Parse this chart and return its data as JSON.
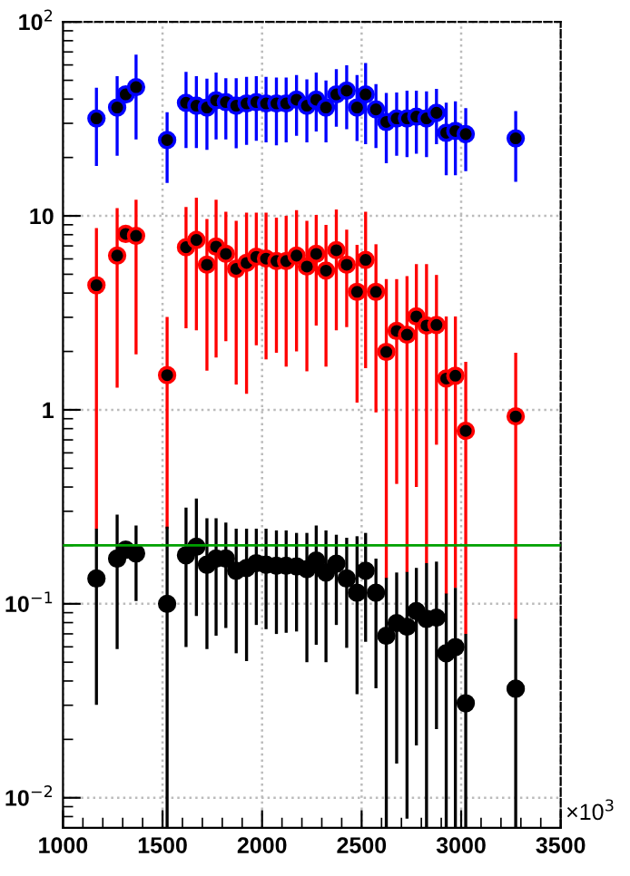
{
  "chart_data": {
    "type": "scatter",
    "x": [
      1168,
      1272,
      1315,
      1367,
      1523,
      1618,
      1670,
      1723,
      1769,
      1818,
      1870,
      1922,
      1971,
      2020,
      2072,
      2121,
      2173,
      2225,
      2272,
      2321,
      2373,
      2425,
      2477,
      2520,
      2572,
      2624,
      2676,
      2728,
      2775,
      2826,
      2876,
      2925,
      2971,
      3023,
      3274
    ],
    "series": [
      {
        "color": "#0000ff",
        "values": [
          31.8,
          36.2,
          42.3,
          46.1,
          24.6,
          38.3,
          37.0,
          36.2,
          39.4,
          38.6,
          37.0,
          38.0,
          38.6,
          38.0,
          38.0,
          38.0,
          39.7,
          37.0,
          39.7,
          36.2,
          42.3,
          44.2,
          36.2,
          42.3,
          35.4,
          30.5,
          31.8,
          31.8,
          32.5,
          31.8,
          34.0,
          26.8,
          27.4,
          26.4,
          25.1
        ],
        "errors": [
          [
            18.1,
            45.8
          ],
          [
            20.4,
            52.5
          ],
          null,
          [
            24.8,
            67.8
          ],
          [
            14.8,
            34.2
          ],
          [
            22.4,
            55.2
          ],
          [
            22.4,
            52.5
          ],
          [
            21.9,
            51.0
          ],
          [
            24.8,
            54.8
          ],
          [
            24.8,
            51.3
          ],
          [
            22.3,
            51.3
          ],
          [
            23.2,
            52.1
          ],
          [
            24.4,
            52.5
          ],
          [
            23.9,
            52.1
          ],
          [
            23.1,
            51.7
          ],
          [
            23.9,
            51.7
          ],
          [
            25.9,
            53.2
          ],
          [
            23.9,
            50.6
          ],
          [
            27.2,
            54.8
          ],
          [
            23.9,
            49.9
          ],
          [
            28.8,
            57.1
          ],
          [
            28.0,
            59.7
          ],
          [
            24.3,
            53.2
          ],
          [
            23.4,
            61.4
          ],
          [
            22.4,
            47.8
          ],
          [
            18.7,
            43.0
          ],
          [
            20.4,
            43.3
          ],
          [
            20.1,
            44.2
          ],
          [
            20.9,
            44.2
          ],
          [
            20.1,
            43.9
          ],
          [
            23.4,
            45.1
          ],
          [
            16.2,
            38.3
          ],
          [
            16.2,
            38.9
          ],
          [
            17.0,
            35.9
          ],
          [
            15.0,
            34.7
          ]
        ]
      },
      {
        "color": "#ff0000",
        "values": [
          4.39,
          6.24,
          8.07,
          7.89,
          1.51,
          6.89,
          7.51,
          5.6,
          6.94,
          6.37,
          5.33,
          5.72,
          6.15,
          6.02,
          5.85,
          5.85,
          6.24,
          5.48,
          6.37,
          5.22,
          6.65,
          5.6,
          4.06,
          5.93,
          4.06,
          1.99,
          2.55,
          2.44,
          3.03,
          2.72,
          2.74,
          1.45,
          1.5,
          0.779,
          0.925
        ],
        "errors": [
          [
            0.243,
            8.66
          ],
          [
            1.3,
            10.96
          ],
          null,
          [
            1.93,
            12.1
          ],
          [
            0.243,
            3.01
          ],
          [
            2.63,
            11.1
          ],
          [
            2.57,
            12.4
          ],
          [
            1.59,
            9.64
          ],
          [
            1.86,
            12.1
          ],
          [
            2.26,
            10.5
          ],
          [
            1.35,
            9.44
          ],
          [
            1.21,
            10.4
          ],
          [
            2.15,
            10.4
          ],
          [
            1.82,
            10.4
          ],
          [
            1.97,
            9.78
          ],
          [
            1.67,
            10.0
          ],
          [
            2.0,
            10.7
          ],
          [
            1.58,
            9.44
          ],
          [
            2.72,
            10.1
          ],
          [
            1.67,
            8.98
          ],
          [
            2.57,
            10.8
          ],
          [
            2.67,
            8.48
          ],
          [
            1.09,
            7.09
          ],
          [
            1.64,
            10.5
          ],
          [
            0.97,
            7.14
          ],
          [
            0.135,
            4.72
          ],
          [
            0.415,
            4.72
          ],
          [
            0.145,
            4.89
          ],
          [
            0.4,
            5.64
          ],
          [
            0.162,
            5.64
          ],
          [
            0.661,
            4.96
          ],
          [
            0.112,
            3.03
          ],
          [
            0.121,
            3.03
          ],
          [
            0.07,
            1.77
          ],
          [
            0.083,
            1.97
          ]
        ]
      },
      {
        "color": "#000000",
        "values": [
          0.135,
          0.171,
          0.19,
          0.182,
          0.1,
          0.178,
          0.197,
          0.159,
          0.171,
          0.171,
          0.148,
          0.153,
          0.162,
          0.159,
          0.157,
          0.157,
          0.156,
          0.151,
          0.167,
          0.145,
          0.161,
          0.135,
          0.114,
          0.148,
          0.114,
          0.0684,
          0.0795,
          0.0762,
          0.0917,
          0.0836,
          0.0848,
          0.0556,
          0.0598,
          0.0307,
          0.0365
        ],
        "errors": [
          [
            0.0301,
            0.244
          ],
          [
            0.0585,
            0.288
          ],
          null,
          [
            0.1035,
            0.253
          ],
          [
            0.007,
            0.25
          ],
          [
            0.0598,
            0.313
          ],
          [
            0.0866,
            0.349
          ],
          [
            0.0585,
            0.276
          ],
          [
            0.0684,
            0.276
          ],
          [
            0.0751,
            0.262
          ],
          [
            0.0556,
            0.244
          ],
          [
            0.0507,
            0.244
          ],
          [
            0.0778,
            0.244
          ],
          [
            0.074,
            0.244
          ],
          [
            0.0699,
            0.239
          ],
          [
            0.0709,
            0.239
          ],
          [
            0.072,
            0.232
          ],
          [
            0.05,
            0.232
          ],
          [
            0.0615,
            0.253
          ],
          [
            0.05,
            0.239
          ],
          [
            0.0778,
            0.227
          ],
          [
            0.0593,
            0.219
          ],
          [
            0.0342,
            0.223
          ],
          [
            0.0637,
            0.232
          ],
          [
            0.0367,
            0.171
          ],
          [
            0.007,
            0.136
          ],
          [
            0.015,
            0.145
          ],
          [
            0.0078,
            0.146
          ],
          [
            0.0186,
            0.153
          ],
          [
            0.007,
            0.162
          ],
          [
            0.0226,
            0.165
          ],
          [
            0.007,
            0.113
          ],
          [
            0.007,
            0.121
          ],
          [
            0.007,
            0.0699
          ],
          [
            0.007,
            0.0836
          ]
        ]
      }
    ],
    "log": "y",
    "marker": "circle",
    "grid": true,
    "xlim": [
      1000,
      3500
    ],
    "xticks": [
      1000,
      1500,
      2000,
      2500,
      3000,
      3500
    ],
    "ylim": [
      0.007,
      100
    ],
    "yticks": [
      {
        "value": 0.01,
        "label": "10$^{−2}$"
      },
      {
        "value": 0.1,
        "label": "10$^{−1}$"
      },
      1,
      10,
      {
        "value": 100,
        "label": "10$^{2}$"
      }
    ],
    "ref_lines": [
      {
        "axis": "y",
        "value": 0.2,
        "color": "#00a000"
      }
    ],
    "annotations": [
      "×10$^{3}$"
    ]
  }
}
